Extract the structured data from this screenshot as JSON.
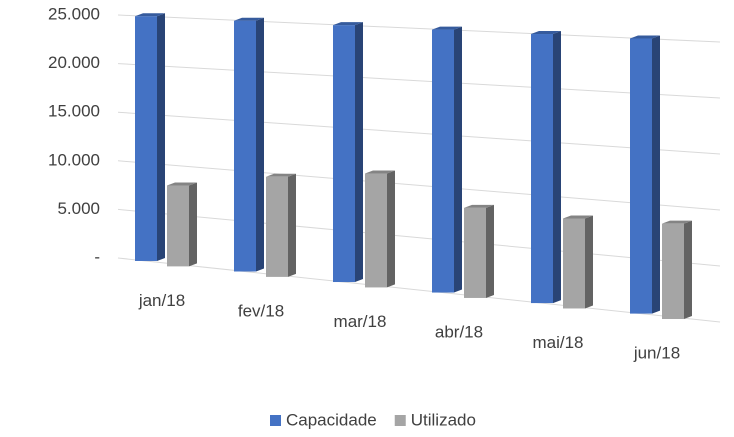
{
  "chart_data": {
    "type": "bar3d",
    "categories": [
      "jan/18",
      "fev/18",
      "mar/18",
      "abr/18",
      "mai/18",
      "jun/18"
    ],
    "series": [
      {
        "name": "Capacidade",
        "color": "#4472c4",
        "values": [
          25000,
          25000,
          25000,
          25000,
          25000,
          25000
        ]
      },
      {
        "name": "Utilizado",
        "color": "#a5a5a5",
        "values": [
          8200,
          9900,
          11000,
          8500,
          8300,
          8600
        ]
      }
    ],
    "ylim": [
      0,
      25000
    ],
    "yticks": [
      {
        "value": 0,
        "label": "-"
      },
      {
        "value": 5000,
        "label": "5.000"
      },
      {
        "value": 10000,
        "label": "10.000"
      },
      {
        "value": 15000,
        "label": "15.000"
      },
      {
        "value": 20000,
        "label": "20.000"
      },
      {
        "value": 25000,
        "label": "25.000"
      }
    ],
    "grid": true,
    "legend": "bottom"
  }
}
